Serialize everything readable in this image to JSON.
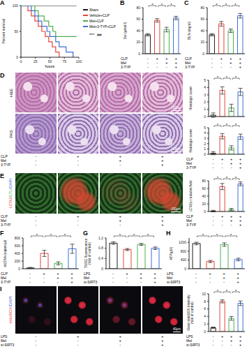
{
  "chart_data": [
    {
      "title": "A",
      "type": "line",
      "xlabel": "hours",
      "ylabel": "Percent survival",
      "xlim": [
        0,
        100
      ],
      "xticks": [
        0,
        25,
        50,
        75,
        100
      ],
      "ylim": [
        0,
        100
      ],
      "yticks": [
        0,
        50,
        100
      ],
      "line_style": "step",
      "legend": "right",
      "annotations": [
        "***",
        "##"
      ],
      "series": [
        {
          "name": "Sham",
          "color": "#1a1a1a",
          "x": [
            0,
            96
          ],
          "values": [
            100,
            100
          ]
        },
        {
          "name": "Vehicle+CLP",
          "color": "#e8443a",
          "x": [
            0,
            12,
            18,
            24,
            30,
            36,
            42,
            48,
            54,
            60,
            66
          ],
          "values": [
            100,
            90,
            80,
            70,
            60,
            50,
            40,
            30,
            20,
            10,
            0
          ]
        },
        {
          "name": "Mel+CLP",
          "color": "#4caf50",
          "x": [
            0,
            24,
            30,
            40,
            48,
            55,
            60,
            96
          ],
          "values": [
            100,
            90,
            80,
            70,
            60,
            50,
            40,
            40
          ]
        },
        {
          "name": "Mel+3-TYP+CLP",
          "color": "#3b6fd8",
          "x": [
            0,
            18,
            24,
            30,
            36,
            45,
            50,
            60,
            66,
            78,
            90
          ],
          "values": [
            100,
            90,
            80,
            70,
            60,
            50,
            40,
            30,
            20,
            10,
            0
          ]
        }
      ]
    },
    {
      "title": "B",
      "type": "bar",
      "ylabel": "Scr (μmol/l)",
      "ylim": [
        0,
        80
      ],
      "yticks": [
        0,
        20,
        40,
        60,
        80
      ],
      "values": [
        33,
        58,
        42,
        62
      ],
      "errors": [
        2,
        3,
        4,
        3
      ],
      "colors": [
        "#1a1a1a",
        "#e8443a",
        "#4caf50",
        "#3b6fd8"
      ],
      "tick_labels": "y",
      "significance": [
        {
          "from": 0,
          "to": 1,
          "label": "*"
        },
        {
          "from": 1,
          "to": 2,
          "label": "*"
        },
        {
          "from": 2,
          "to": 3,
          "label": "*"
        }
      ],
      "conditions": [
        {
          "label": "CLP",
          "marks": [
            "-",
            "+",
            "+",
            "+"
          ]
        },
        {
          "label": "Mel",
          "marks": [
            "-",
            "-",
            "+",
            "+"
          ]
        },
        {
          "label": "3-TYP",
          "marks": [
            "-",
            "-",
            "-",
            "+"
          ]
        }
      ]
    },
    {
      "title": "C",
      "type": "bar",
      "ylabel": "BUN (mg/dl)",
      "ylim": [
        0,
        80
      ],
      "yticks": [
        0,
        20,
        40,
        60,
        80
      ],
      "values": [
        33,
        52,
        40,
        66
      ],
      "errors": [
        2,
        4,
        3,
        4
      ],
      "colors": [
        "#1a1a1a",
        "#e8443a",
        "#4caf50",
        "#3b6fd8"
      ],
      "tick_labels": "y",
      "significance": [
        {
          "from": 0,
          "to": 1,
          "label": "*"
        },
        {
          "from": 1,
          "to": 2,
          "label": "*"
        },
        {
          "from": 2,
          "to": 3,
          "label": "*"
        }
      ],
      "conditions": [
        {
          "label": "CLP",
          "marks": [
            "-",
            "+",
            "+",
            "+"
          ]
        },
        {
          "label": "Mel",
          "marks": [
            "-",
            "-",
            "+",
            "+"
          ]
        },
        {
          "label": "3-TYP",
          "marks": [
            "-",
            "-",
            "-",
            "+"
          ]
        }
      ]
    },
    {
      "type": "bar",
      "ylabel": "Histologic score",
      "ylim": [
        0,
        5
      ],
      "yticks": [
        0,
        1,
        2,
        3,
        4,
        5
      ],
      "values": [
        0.2,
        3.6,
        1.2,
        3.4
      ],
      "errors": [
        0.3,
        0.5,
        0.5,
        0.5
      ],
      "colors": [
        "#1a1a1a",
        "#e8443a",
        "#4caf50",
        "#3b6fd8"
      ],
      "tick_labels": "y",
      "significance": [
        {
          "from": 0,
          "to": 1,
          "label": "*"
        },
        {
          "from": 1,
          "to": 2,
          "label": "*"
        },
        {
          "from": 2,
          "to": 3,
          "label": "*"
        }
      ]
    },
    {
      "type": "bar",
      "ylabel": "Histologic score",
      "ylim": [
        0,
        5
      ],
      "yticks": [
        0,
        1,
        2,
        3,
        4,
        5
      ],
      "values": [
        0.2,
        3.4,
        1.2,
        3.3
      ],
      "errors": [
        0.3,
        0.5,
        0.4,
        0.5
      ],
      "colors": [
        "#1a1a1a",
        "#e8443a",
        "#4caf50",
        "#3b6fd8"
      ],
      "tick_labels": "y",
      "significance": [
        {
          "from": 0,
          "to": 1,
          "label": "*"
        },
        {
          "from": 1,
          "to": 2,
          "label": "*"
        },
        {
          "from": 2,
          "to": 3,
          "label": "*"
        }
      ],
      "conditions": [
        {
          "label": "CLP",
          "marks": [
            "-",
            "+",
            "+",
            "+"
          ]
        },
        {
          "label": "Mel",
          "marks": [
            "-",
            "-",
            "+",
            "+"
          ]
        },
        {
          "label": "3-TYP",
          "marks": [
            "-",
            "-",
            "-",
            "+"
          ]
        }
      ]
    },
    {
      "type": "bar",
      "ylabel": "LCN2(+) tubules/field",
      "ylim": [
        0,
        80
      ],
      "yticks": [
        0,
        20,
        40,
        60,
        80
      ],
      "values": [
        1,
        65,
        5,
        72
      ],
      "errors": [
        2,
        8,
        3,
        5
      ],
      "colors": [
        "#1a1a1a",
        "#e8443a",
        "#4caf50",
        "#3b6fd8"
      ],
      "tick_labels": "y",
      "significance": [
        {
          "from": 0,
          "to": 1,
          "label": "*"
        },
        {
          "from": 1,
          "to": 2,
          "label": "*"
        },
        {
          "from": 2,
          "to": 3,
          "label": "*"
        }
      ],
      "conditions": [
        {
          "label": "CLP",
          "marks": [
            "-",
            "+",
            "+",
            "+"
          ]
        },
        {
          "label": "Mel",
          "marks": [
            "-",
            "-",
            "+",
            "+"
          ]
        },
        {
          "label": "3-TYP",
          "marks": [
            "-",
            "-",
            "-",
            "+"
          ]
        }
      ]
    },
    {
      "title": "F",
      "type": "bar",
      "ylabel": "mtDNA (copies/μl)",
      "ylim": [
        0,
        800
      ],
      "yticks": [
        0,
        200,
        400,
        600,
        800
      ],
      "values": [
        20,
        400,
        140,
        520
      ],
      "errors": [
        15,
        80,
        40,
        120
      ],
      "colors": [
        "#1a1a1a",
        "#e8443a",
        "#4caf50",
        "#3b6fd8"
      ],
      "tick_labels": "y",
      "significance": [
        {
          "from": 0,
          "to": 1,
          "label": "*"
        },
        {
          "from": 1,
          "to": 2,
          "label": "*"
        },
        {
          "from": 2,
          "to": 3,
          "label": "*"
        }
      ],
      "conditions": [
        {
          "label": "CLP",
          "marks": [
            "-",
            "+",
            "+",
            "+"
          ]
        },
        {
          "label": "Mel",
          "marks": [
            "-",
            "-",
            "+",
            "+"
          ]
        },
        {
          "label": "3-TYP",
          "marks": [
            "-",
            "-",
            "-",
            "+"
          ]
        }
      ]
    },
    {
      "title": "G",
      "type": "bar",
      "ylabel": "TMRE fluorescence (fold of control)",
      "ylim": [
        0,
        1.2
      ],
      "yticks": [
        0,
        0.4,
        0.8,
        1.2
      ],
      "values": [
        1.0,
        0.75,
        0.95,
        0.8
      ],
      "errors": [
        0.05,
        0.04,
        0.04,
        0.05
      ],
      "colors": [
        "#1a1a1a",
        "#e8443a",
        "#4caf50",
        "#3b6fd8"
      ],
      "tick_labels": "y",
      "significance": [
        {
          "from": 0,
          "to": 1,
          "label": "*"
        },
        {
          "from": 1,
          "to": 2,
          "label": "*"
        },
        {
          "from": 2,
          "to": 3,
          "label": "*"
        }
      ],
      "conditions": [
        {
          "label": "LPS",
          "marks": [
            "-",
            "+",
            "+",
            "+"
          ]
        },
        {
          "label": "Mel",
          "marks": [
            "-",
            "-",
            "+",
            "+"
          ]
        },
        {
          "label": "si-SIRT3",
          "marks": [
            "-",
            "-",
            "-",
            "+"
          ]
        }
      ]
    },
    {
      "title": "H",
      "type": "bar",
      "ylabel": "ATP(μM)",
      "ylim": [
        0,
        1400
      ],
      "yticks": [
        0,
        400,
        800,
        1200
      ],
      "values": [
        1150,
        330,
        1100,
        420
      ],
      "errors": [
        60,
        50,
        80,
        60
      ],
      "colors": [
        "#1a1a1a",
        "#e8443a",
        "#4caf50",
        "#3b6fd8"
      ],
      "tick_labels": "y",
      "significance": [
        {
          "from": 0,
          "to": 1,
          "label": "*"
        },
        {
          "from": 1,
          "to": 2,
          "label": "*"
        },
        {
          "from": 2,
          "to": 3,
          "label": "*"
        }
      ],
      "conditions": [
        {
          "label": "LPS",
          "marks": [
            "-",
            "+",
            "+",
            "+"
          ]
        },
        {
          "label": "Mel",
          "marks": [
            "-",
            "-",
            "+",
            "+"
          ]
        },
        {
          "label": "si-SIRT3",
          "marks": [
            "-",
            "-",
            "-",
            "+"
          ]
        }
      ]
    },
    {
      "type": "bar",
      "ylabel": "Mean mitoSOX intensity (fold of control)",
      "ylim": [
        0,
        10
      ],
      "yticks": [
        0,
        2,
        4,
        6,
        8,
        10
      ],
      "values": [
        1,
        8,
        3.5,
        7.5
      ],
      "errors": [
        0.2,
        0.4,
        0.5,
        0.6
      ],
      "colors": [
        "#1a1a1a",
        "#e8443a",
        "#4caf50",
        "#3b6fd8"
      ],
      "tick_labels": "y",
      "significance": [
        {
          "from": 0,
          "to": 1,
          "label": "*"
        },
        {
          "from": 1,
          "to": 2,
          "label": "*"
        },
        {
          "from": 2,
          "to": 3,
          "label": "*"
        }
      ],
      "conditions": [
        {
          "label": "LPS",
          "marks": [
            "-",
            "+",
            "+",
            "+"
          ]
        },
        {
          "label": "Mel",
          "marks": [
            "-",
            "-",
            "+",
            "+"
          ]
        },
        {
          "label": "si-SIRT3",
          "marks": [
            "-",
            "-",
            "-",
            "+"
          ]
        }
      ]
    }
  ],
  "images": [
    {
      "panel": "D",
      "rows": [
        {
          "label": "H&E"
        },
        {
          "label": "PAS"
        }
      ],
      "scale_bar": "100μm",
      "conditions": [
        {
          "label": "CLP",
          "marks": [
            "-",
            "+",
            "+",
            "+"
          ]
        },
        {
          "label": "Mel",
          "marks": [
            "-",
            "-",
            "+",
            "+"
          ]
        },
        {
          "label": "3-TYP",
          "marks": [
            "-",
            "-",
            "-",
            "+"
          ]
        }
      ]
    },
    {
      "panel": "E",
      "channels": [
        {
          "label": "LCN2",
          "color": "#e04040"
        },
        {
          "label": "/LTL",
          "color": "#3fae3f"
        },
        {
          "label": "/DAPI",
          "color": "#4060e0"
        }
      ],
      "scale_bar": "100μm",
      "conditions": [
        {
          "label": "CLP",
          "marks": [
            "-",
            "+",
            "+",
            "+"
          ]
        },
        {
          "label": "Mel",
          "marks": [
            "-",
            "-",
            "+",
            "+"
          ]
        },
        {
          "label": "3-TYP",
          "marks": [
            "-",
            "-",
            "-",
            "+"
          ]
        }
      ]
    },
    {
      "panel": "I",
      "channels": [
        {
          "label": "mitoSOX",
          "color": "#e04040"
        },
        {
          "label": "/DAPI",
          "color": "#4060e0"
        }
      ],
      "scale_bar": "40μm",
      "conditions": [
        {
          "label": "LPS",
          "marks": [
            "-",
            "+",
            "+",
            "+"
          ]
        },
        {
          "label": "Mel",
          "marks": [
            "-",
            "-",
            "+",
            "+"
          ]
        },
        {
          "label": "si-SIRT3",
          "marks": [
            "-",
            "-",
            "-",
            "+"
          ]
        }
      ]
    }
  ]
}
